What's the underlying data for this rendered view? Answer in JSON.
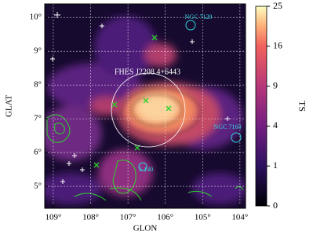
{
  "chart_data": {
    "type": "heatmap",
    "xlabel": "GLON",
    "ylabel": "GLAT",
    "xlim": [
      109.23,
      103.85
    ],
    "ylim": [
      4.35,
      10.4
    ],
    "xticks": [
      {
        "value": 109,
        "label": "109°"
      },
      {
        "value": 108,
        "label": "108°"
      },
      {
        "value": 107,
        "label": "107°"
      },
      {
        "value": 106,
        "label": "106°"
      },
      {
        "value": 105,
        "label": "105°"
      },
      {
        "value": 104,
        "label": "104°"
      }
    ],
    "yticks": [
      {
        "value": 5,
        "label": "5°"
      },
      {
        "value": 6,
        "label": "6°"
      },
      {
        "value": 7,
        "label": "7°"
      },
      {
        "value": 8,
        "label": "8°"
      },
      {
        "value": 9,
        "label": "9°"
      },
      {
        "value": 10,
        "label": "10°"
      }
    ],
    "grid": true,
    "colormap": "magma",
    "colorbar": {
      "label": "TS",
      "scale": "sqrt",
      "clim": [
        0,
        25
      ],
      "ticks": [
        0,
        1,
        4,
        9,
        16,
        25
      ]
    },
    "annotations": [
      "FHES J2208.4+6443",
      "NGC 7129",
      "NGC 7160",
      "S 140"
    ]
  }
}
